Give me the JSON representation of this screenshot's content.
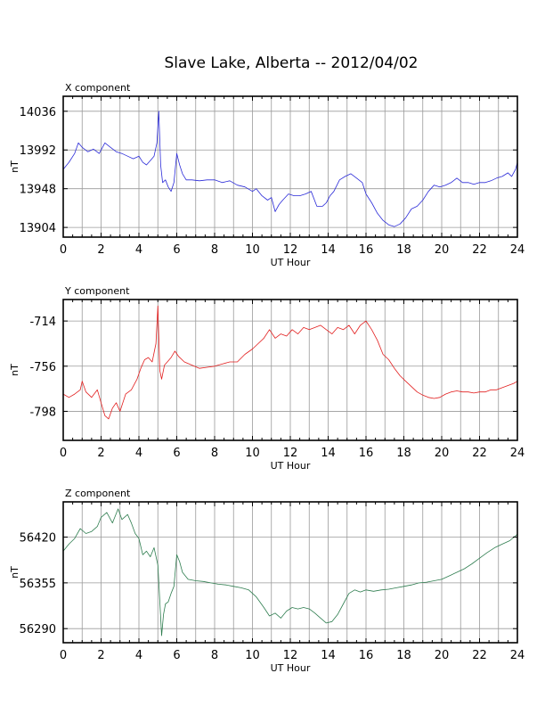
{
  "title": "Slave Lake, Alberta -- 2012/04/02",
  "chart_data": [
    {
      "type": "line",
      "label": "X component",
      "xlabel": "UT Hour",
      "ylabel": "nT",
      "xlim": [
        0,
        24
      ],
      "ylim": [
        13893,
        14053
      ],
      "xticks": [
        0,
        2,
        4,
        6,
        8,
        10,
        12,
        14,
        16,
        18,
        20,
        22,
        24
      ],
      "yticks": [
        13904,
        13948,
        13992,
        14036
      ],
      "color": "#2a2ad8",
      "grid": true,
      "series": [
        {
          "x": [
            0,
            0.3,
            0.6,
            0.8,
            1.0,
            1.3,
            1.6,
            1.9,
            2.2,
            2.5,
            2.8,
            3.1,
            3.4,
            3.7,
            4.0,
            4.2,
            4.4,
            4.6,
            4.8,
            4.95,
            5.05,
            5.15,
            5.25,
            5.4,
            5.55,
            5.7,
            5.85,
            6.0,
            6.15,
            6.3,
            6.5,
            6.8,
            7.2,
            7.6,
            8.0,
            8.4,
            8.8,
            9.2,
            9.6,
            10.0,
            10.2,
            10.5,
            10.8,
            11.0,
            11.2,
            11.4,
            11.6,
            11.9,
            12.2,
            12.5,
            12.8,
            13.1,
            13.4,
            13.7,
            13.9,
            14.1,
            14.3,
            14.6,
            14.9,
            15.2,
            15.5,
            15.8,
            16.0,
            16.3,
            16.6,
            16.9,
            17.2,
            17.5,
            17.8,
            18.1,
            18.4,
            18.7,
            19.0,
            19.3,
            19.6,
            19.9,
            20.2,
            20.5,
            20.8,
            21.1,
            21.4,
            21.7,
            22.0,
            22.3,
            22.6,
            22.9,
            23.2,
            23.5,
            23.7,
            23.9,
            24.0
          ],
          "y": [
            13970,
            13978,
            13988,
            14000,
            13995,
            13990,
            13993,
            13988,
            14000,
            13995,
            13990,
            13988,
            13985,
            13982,
            13985,
            13978,
            13975,
            13980,
            13985,
            14000,
            14036,
            13975,
            13955,
            13958,
            13950,
            13945,
            13955,
            13988,
            13975,
            13965,
            13958,
            13958,
            13957,
            13958,
            13958,
            13955,
            13957,
            13952,
            13950,
            13945,
            13948,
            13940,
            13935,
            13938,
            13922,
            13930,
            13935,
            13942,
            13940,
            13940,
            13942,
            13945,
            13928,
            13928,
            13932,
            13940,
            13945,
            13958,
            13962,
            13965,
            13960,
            13955,
            13942,
            13932,
            13920,
            13912,
            13907,
            13905,
            13908,
            13915,
            13925,
            13928,
            13935,
            13945,
            13952,
            13950,
            13952,
            13955,
            13960,
            13955,
            13955,
            13953,
            13955,
            13955,
            13957,
            13960,
            13962,
            13966,
            13962,
            13970,
            13978
          ]
        }
      ]
    },
    {
      "type": "line",
      "label": "Y component",
      "xlabel": "UT Hour",
      "ylabel": "nT",
      "xlim": [
        0,
        24
      ],
      "ylim": [
        -825,
        -694
      ],
      "xticks": [
        0,
        2,
        4,
        6,
        8,
        10,
        12,
        14,
        16,
        18,
        20,
        22,
        24
      ],
      "yticks": [
        -714,
        -756,
        -798
      ],
      "color": "#e21e1e",
      "grid": true,
      "series": [
        {
          "x": [
            0,
            0.3,
            0.6,
            0.9,
            1.0,
            1.2,
            1.5,
            1.8,
            2.0,
            2.2,
            2.4,
            2.6,
            2.8,
            3.0,
            3.3,
            3.6,
            3.9,
            4.1,
            4.3,
            4.5,
            4.7,
            4.9,
            5.0,
            5.1,
            5.2,
            5.35,
            5.5,
            5.7,
            5.9,
            6.1,
            6.4,
            6.8,
            7.2,
            7.6,
            8.0,
            8.4,
            8.8,
            9.2,
            9.6,
            10.0,
            10.3,
            10.6,
            10.9,
            11.2,
            11.5,
            11.8,
            12.1,
            12.4,
            12.7,
            13.0,
            13.3,
            13.6,
            13.9,
            14.2,
            14.5,
            14.8,
            15.1,
            15.4,
            15.7,
            16.0,
            16.3,
            16.6,
            16.9,
            17.2,
            17.5,
            17.8,
            18.1,
            18.4,
            18.7,
            19.0,
            19.3,
            19.6,
            19.9,
            20.2,
            20.5,
            20.8,
            21.1,
            21.4,
            21.7,
            22.0,
            22.3,
            22.6,
            22.9,
            23.2,
            23.5,
            23.8,
            24.0
          ],
          "y": [
            -782,
            -785,
            -782,
            -778,
            -770,
            -780,
            -785,
            -778,
            -790,
            -802,
            -805,
            -795,
            -790,
            -798,
            -782,
            -778,
            -768,
            -758,
            -750,
            -748,
            -752,
            -735,
            -700,
            -760,
            -768,
            -755,
            -752,
            -748,
            -742,
            -747,
            -752,
            -755,
            -758,
            -757,
            -756,
            -754,
            -752,
            -752,
            -745,
            -740,
            -735,
            -730,
            -722,
            -730,
            -726,
            -728,
            -722,
            -726,
            -720,
            -722,
            -720,
            -718,
            -722,
            -726,
            -720,
            -722,
            -718,
            -726,
            -718,
            -714,
            -722,
            -732,
            -745,
            -750,
            -758,
            -765,
            -770,
            -775,
            -780,
            -783,
            -785,
            -786,
            -785,
            -782,
            -780,
            -779,
            -780,
            -780,
            -781,
            -780,
            -780,
            -778,
            -778,
            -776,
            -774,
            -772,
            -770
          ]
        }
      ]
    },
    {
      "type": "line",
      "label": "Z component",
      "xlabel": "UT Hour",
      "ylabel": "nT",
      "xlim": [
        0,
        24
      ],
      "ylim": [
        56270,
        56470
      ],
      "xticks": [
        0,
        2,
        4,
        6,
        8,
        10,
        12,
        14,
        16,
        18,
        20,
        22,
        24
      ],
      "yticks": [
        56290,
        56355,
        56420
      ],
      "color": "#2e7d4f",
      "grid": true,
      "series": [
        {
          "x": [
            0,
            0.3,
            0.6,
            0.9,
            1.2,
            1.5,
            1.8,
            2.0,
            2.3,
            2.6,
            2.9,
            3.1,
            3.4,
            3.6,
            3.8,
            4.0,
            4.2,
            4.4,
            4.6,
            4.8,
            5.0,
            5.1,
            5.2,
            5.3,
            5.4,
            5.55,
            5.7,
            5.85,
            6.0,
            6.15,
            6.3,
            6.6,
            7.0,
            7.4,
            7.8,
            8.2,
            8.6,
            9.0,
            9.4,
            9.8,
            10.2,
            10.6,
            10.9,
            11.2,
            11.5,
            11.8,
            12.1,
            12.4,
            12.7,
            13.0,
            13.3,
            13.6,
            13.9,
            14.2,
            14.5,
            14.8,
            15.1,
            15.4,
            15.7,
            16.0,
            16.4,
            16.8,
            17.2,
            17.6,
            18.0,
            18.4,
            18.8,
            19.2,
            19.6,
            20.0,
            20.4,
            20.8,
            21.2,
            21.6,
            22.0,
            22.4,
            22.8,
            23.2,
            23.6,
            24.0
          ],
          "y": [
            56400,
            56410,
            56418,
            56432,
            56425,
            56428,
            56435,
            56448,
            56455,
            56440,
            56460,
            56445,
            56452,
            56440,
            56425,
            56418,
            56395,
            56400,
            56392,
            56405,
            56380,
            56330,
            56280,
            56310,
            56325,
            56328,
            56340,
            56350,
            56395,
            56385,
            56370,
            56360,
            56358,
            56357,
            56355,
            56353,
            56352,
            56350,
            56348,
            56345,
            56335,
            56320,
            56308,
            56312,
            56305,
            56315,
            56320,
            56318,
            56320,
            56318,
            56312,
            56305,
            56298,
            56300,
            56310,
            56325,
            56340,
            56345,
            56342,
            56345,
            56343,
            56345,
            56346,
            56348,
            56350,
            56352,
            56355,
            56356,
            56358,
            56360,
            56365,
            56370,
            56375,
            56382,
            56390,
            56398,
            56405,
            56410,
            56415,
            56424
          ]
        }
      ]
    }
  ]
}
